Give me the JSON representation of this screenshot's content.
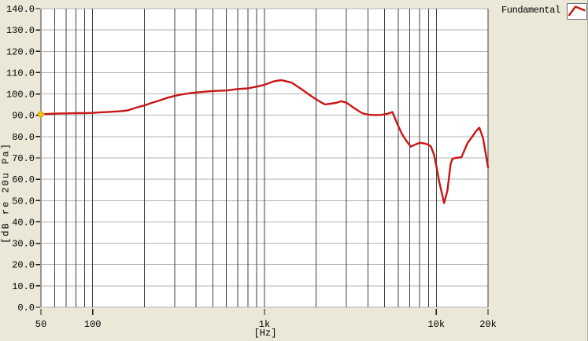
{
  "window": {
    "description": "Frequency response measurement plot"
  },
  "legend": {
    "label": "Fundamental"
  },
  "colors": {
    "background": "#ebe8d8",
    "plot_bg": "#ffffff",
    "curve": "#c81616",
    "grid_vertical": "#3f3f3f",
    "grid_horizontal": "#b3b3b3",
    "text": "#000000",
    "tick": "#1a1a1a",
    "start_marker_fill": "#f2c21c",
    "start_marker_edge": "#c89e0a",
    "legend_box_border": "#6e6e6e"
  },
  "chart_data": {
    "type": "line",
    "title": "",
    "xlabel": "[Hz]",
    "ylabel": "[dB re 20u Pa]",
    "x_scale": "log",
    "x_range_hz": [
      50,
      20000
    ],
    "y_range_db": [
      0,
      140
    ],
    "grid": true,
    "legend_position": "top-right",
    "y_ticks": [
      {
        "db": 140,
        "label": "140.0"
      },
      {
        "db": 130,
        "label": "130.0"
      },
      {
        "db": 120,
        "label": "120.0"
      },
      {
        "db": 110,
        "label": "110.0"
      },
      {
        "db": 100,
        "label": "100.0"
      },
      {
        "db": 90,
        "label": "90.0"
      },
      {
        "db": 80,
        "label": "80.0"
      },
      {
        "db": 70,
        "label": "70.0"
      },
      {
        "db": 60,
        "label": "60.0"
      },
      {
        "db": 50,
        "label": "50.0"
      },
      {
        "db": 40,
        "label": "40.0"
      },
      {
        "db": 30,
        "label": "30.0"
      },
      {
        "db": 20,
        "label": "20.0"
      },
      {
        "db": 10,
        "label": "10.0"
      },
      {
        "db": 0,
        "label": "0.0"
      }
    ],
    "x_tick_labels": [
      {
        "f": 50,
        "label": "50"
      },
      {
        "f": 100,
        "label": "100"
      },
      {
        "f": 1000,
        "label": "1k"
      },
      {
        "f": 10000,
        "label": "10k"
      },
      {
        "f": 20000,
        "label": "20k"
      }
    ],
    "x_gridlines_hz": [
      50,
      60,
      70,
      80,
      90,
      100,
      200,
      300,
      400,
      500,
      600,
      700,
      800,
      900,
      1000,
      2000,
      3000,
      4000,
      5000,
      6000,
      7000,
      8000,
      9000,
      10000,
      20000
    ],
    "series": [
      {
        "name": "Fundamental",
        "color": "#c81616",
        "points": [
          [
            50,
            90.5
          ],
          [
            57,
            90.7
          ],
          [
            63,
            90.8
          ],
          [
            72,
            90.9
          ],
          [
            80,
            91.0
          ],
          [
            90,
            91.0
          ],
          [
            100,
            91.1
          ],
          [
            112,
            91.4
          ],
          [
            125,
            91.6
          ],
          [
            145,
            91.9
          ],
          [
            160,
            92.3
          ],
          [
            180,
            93.6
          ],
          [
            200,
            94.6
          ],
          [
            220,
            95.8
          ],
          [
            240,
            96.7
          ],
          [
            275,
            98.3
          ],
          [
            315,
            99.5
          ],
          [
            370,
            100.4
          ],
          [
            430,
            100.9
          ],
          [
            500,
            101.4
          ],
          [
            600,
            101.6
          ],
          [
            700,
            102.3
          ],
          [
            800,
            102.6
          ],
          [
            900,
            103.4
          ],
          [
            1000,
            104.3
          ],
          [
            1130,
            105.9
          ],
          [
            1250,
            106.5
          ],
          [
            1440,
            105.3
          ],
          [
            1660,
            102.0
          ],
          [
            1880,
            98.9
          ],
          [
            2100,
            96.4
          ],
          [
            2250,
            95.1
          ],
          [
            2600,
            95.8
          ],
          [
            2800,
            96.6
          ],
          [
            3000,
            95.9
          ],
          [
            3350,
            93.2
          ],
          [
            3700,
            91.0
          ],
          [
            4000,
            90.3
          ],
          [
            4400,
            90.1
          ],
          [
            4800,
            90.2
          ],
          [
            5200,
            90.7
          ],
          [
            5550,
            91.5
          ],
          [
            6000,
            85.0
          ],
          [
            6300,
            81.3
          ],
          [
            6700,
            78.0
          ],
          [
            7100,
            75.3
          ],
          [
            7500,
            76.2
          ],
          [
            8000,
            77.1
          ],
          [
            8500,
            76.8
          ],
          [
            9000,
            76.2
          ],
          [
            9300,
            75.4
          ],
          [
            9700,
            71.5
          ],
          [
            10000,
            66.3
          ],
          [
            10400,
            58.8
          ],
          [
            11100,
            48.8
          ],
          [
            11600,
            54.7
          ],
          [
            12100,
            67.0
          ],
          [
            12400,
            69.6
          ],
          [
            13000,
            70.0
          ],
          [
            14000,
            70.3
          ],
          [
            15200,
            77.0
          ],
          [
            16400,
            80.6
          ],
          [
            17000,
            82.5
          ],
          [
            17800,
            84.2
          ],
          [
            18700,
            79.4
          ],
          [
            19400,
            72.0
          ],
          [
            20000,
            65.6
          ]
        ]
      }
    ],
    "start_marker": {
      "f": 50,
      "db": 90.5
    }
  }
}
